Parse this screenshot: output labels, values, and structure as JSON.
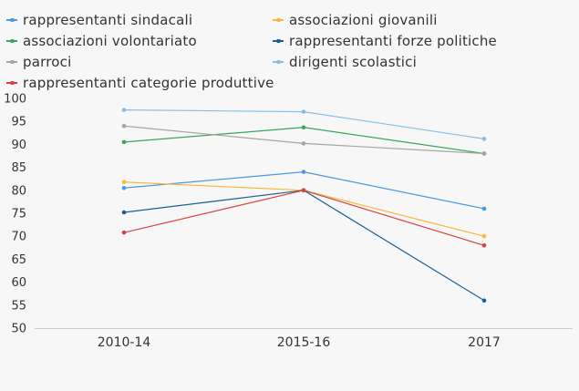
{
  "chart_data": {
    "type": "line",
    "categories": [
      "2010-14",
      "2015-16",
      "2017"
    ],
    "series": [
      {
        "name": "rappresentanti sindacali",
        "color": "#4a98e0",
        "values": [
          80.5,
          84,
          76
        ]
      },
      {
        "name": "associazioni giovanili",
        "color": "#f7b83c",
        "values": [
          81.8,
          80,
          70
        ]
      },
      {
        "name": "associazioni volontariato",
        "color": "#3aa65a",
        "values": [
          90.5,
          93.7,
          88
        ]
      },
      {
        "name": "rappresentanti forze politiche",
        "color": "#1c5f94",
        "values": [
          75.2,
          80,
          56
        ]
      },
      {
        "name": "parroci",
        "color": "#a5a5a5",
        "values": [
          94,
          90.2,
          88
        ]
      },
      {
        "name": "dirigenti scolastici",
        "color": "#86bfea",
        "values": [
          97.5,
          97.1,
          91.2
        ]
      },
      {
        "name": "rappresentanti categorie produttive",
        "color": "#d94240",
        "values": [
          70.8,
          80,
          68
        ]
      }
    ],
    "ylim": [
      50,
      100
    ],
    "yticks": [
      50,
      55,
      60,
      65,
      70,
      75,
      80,
      85,
      90,
      95,
      100
    ],
    "grid": false,
    "legend": "top"
  }
}
